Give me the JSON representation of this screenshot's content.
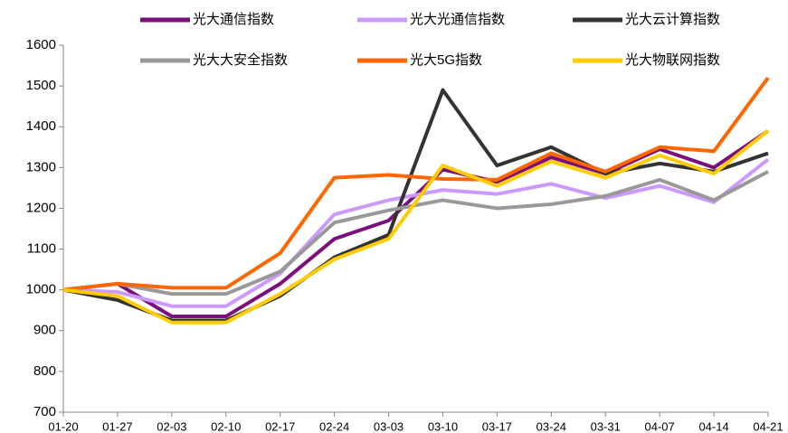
{
  "chart_data": {
    "type": "line",
    "categories": [
      "01-20",
      "01-27",
      "02-03",
      "02-10",
      "02-17",
      "02-24",
      "03-03",
      "03-10",
      "03-17",
      "03-24",
      "03-31",
      "04-07",
      "04-14",
      "04-21"
    ],
    "series": [
      {
        "name": "光大通信指数",
        "color": "#7b0f7b",
        "values": [
          1000,
          1015,
          935,
          935,
          1015,
          1125,
          1170,
          1295,
          1265,
          1325,
          1285,
          1345,
          1300,
          1390
        ]
      },
      {
        "name": "光大光通信指数",
        "color": "#cc99ff",
        "values": [
          1000,
          995,
          960,
          960,
          1040,
          1185,
          1220,
          1245,
          1235,
          1260,
          1225,
          1255,
          1215,
          1320
        ]
      },
      {
        "name": "光大云计算指数",
        "color": "#333333",
        "values": [
          1000,
          975,
          925,
          925,
          985,
          1080,
          1135,
          1490,
          1305,
          1350,
          1285,
          1310,
          1290,
          1335
        ]
      },
      {
        "name": "光大大安全指数",
        "color": "#999999",
        "values": [
          1000,
          1015,
          990,
          990,
          1045,
          1165,
          1195,
          1220,
          1200,
          1210,
          1230,
          1270,
          1220,
          1290
        ]
      },
      {
        "name": "光大5G指数",
        "color": "#ff6600",
        "values": [
          1000,
          1015,
          1005,
          1005,
          1090,
          1275,
          1282,
          1272,
          1270,
          1335,
          1290,
          1350,
          1340,
          1520
        ]
      },
      {
        "name": "光大物联网指数",
        "color": "#ffcc00",
        "values": [
          1000,
          985,
          920,
          920,
          990,
          1075,
          1125,
          1305,
          1255,
          1315,
          1275,
          1330,
          1285,
          1390
        ]
      }
    ],
    "ylim": [
      700,
      1600
    ],
    "yticks": [
      700,
      800,
      900,
      1000,
      1100,
      1200,
      1300,
      1400,
      1500,
      1600
    ],
    "grid": false
  }
}
